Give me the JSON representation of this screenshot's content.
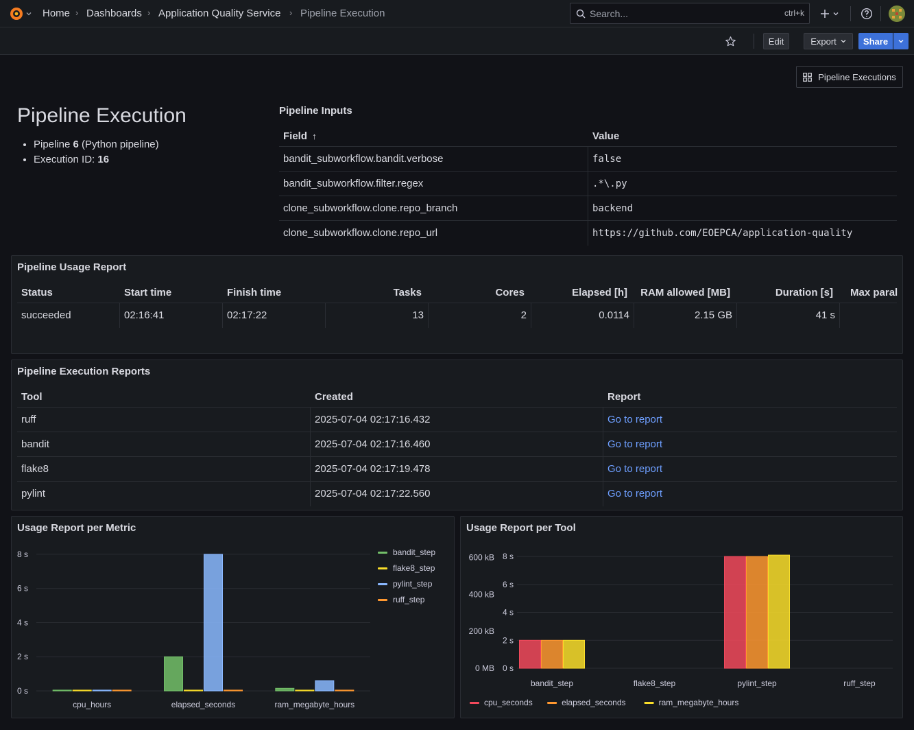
{
  "nav": {
    "breadcrumbs": [
      "Home",
      "Dashboards",
      "Application Quality Service",
      "Pipeline Execution"
    ],
    "search_placeholder": "Search...",
    "search_shortcut": "ctrl+k"
  },
  "toolbar": {
    "edit": "Edit",
    "export": "Export",
    "share": "Share",
    "pipeline_executions": "Pipeline Executions"
  },
  "header": {
    "title": "Pipeline Execution",
    "pipeline_label": "Pipeline ",
    "pipeline_id": "6",
    "pipeline_name": " (Python pipeline)",
    "execution_label": "Execution ID: ",
    "execution_id": "16"
  },
  "inputs": {
    "title": "Pipeline Inputs",
    "columns": [
      "Field",
      "Value"
    ],
    "sort_indicator": "↑",
    "rows": [
      {
        "field": "bandit_subworkflow.bandit.verbose",
        "value": "false"
      },
      {
        "field": "bandit_subworkflow.filter.regex",
        "value": ".*\\.py"
      },
      {
        "field": "clone_subworkflow.clone.repo_branch",
        "value": "backend"
      },
      {
        "field": "clone_subworkflow.clone.repo_url",
        "value": "https://github.com/EOEPCA/application-quality"
      }
    ]
  },
  "usage": {
    "title": "Pipeline Usage Report",
    "columns": [
      "Status",
      "Start time",
      "Finish time",
      "Tasks",
      "Cores",
      "Elapsed [h]",
      "RAM allowed [MB]",
      "Duration [s]",
      "Max paral"
    ],
    "row": [
      "succeeded",
      "02:16:41",
      "02:17:22",
      "13",
      "2",
      "0.0114",
      "2.15 GB",
      "41 s",
      ""
    ]
  },
  "reports": {
    "title": "Pipeline Execution Reports",
    "columns": [
      "Tool",
      "Created",
      "Report"
    ],
    "rows": [
      {
        "tool": "ruff",
        "created": "2025-07-04 02:17:16.432",
        "report": "Go to report"
      },
      {
        "tool": "bandit",
        "created": "2025-07-04 02:17:16.460",
        "report": "Go to report"
      },
      {
        "tool": "flake8",
        "created": "2025-07-04 02:17:19.478",
        "report": "Go to report"
      },
      {
        "tool": "pylint",
        "created": "2025-07-04 02:17:22.560",
        "report": "Go to report"
      }
    ]
  },
  "chart_data": [
    {
      "type": "bar",
      "title": "Usage Report per Metric",
      "categories": [
        "cpu_hours",
        "elapsed_seconds",
        "ram_megabyte_hours"
      ],
      "series": [
        {
          "name": "bandit_step",
          "color": "#73bf69",
          "values": [
            0.01,
            2.0,
            0.15
          ]
        },
        {
          "name": "flake8_step",
          "color": "#fade2a",
          "values": [
            0,
            0,
            0
          ]
        },
        {
          "name": "pylint_step",
          "color": "#8ab8ff",
          "values": [
            0.03,
            8.0,
            0.6
          ]
        },
        {
          "name": "ruff_step",
          "color": "#ff9830",
          "values": [
            0,
            0.03,
            0
          ]
        }
      ],
      "y_ticks": [
        "0 s",
        "2 s",
        "4 s",
        "6 s",
        "8 s"
      ],
      "ylim": [
        0,
        8.6
      ],
      "legend": "right"
    },
    {
      "type": "bar",
      "title": "Usage Report per Tool",
      "categories": [
        "bandit_step",
        "flake8_step",
        "pylint_step",
        "ruff_step"
      ],
      "series": [
        {
          "name": "cpu_seconds",
          "color": "#f2495c",
          "values": [
            2.0,
            0,
            8.0,
            0
          ]
        },
        {
          "name": "elapsed_seconds",
          "color": "#ff9830",
          "values": [
            2.0,
            0,
            8.0,
            0
          ]
        },
        {
          "name": "ram_megabyte_hours",
          "color": "#fade2a",
          "values": [
            2.0,
            0,
            8.1,
            0
          ]
        }
      ],
      "y_ticks_left": [
        "0 MB",
        "200 kB",
        "400 kB",
        "600 kB"
      ],
      "y_ticks_right": [
        "0 s",
        "2 s",
        "4 s",
        "6 s",
        "8 s"
      ],
      "ylim": [
        0,
        8.3
      ],
      "legend": "bottom"
    }
  ]
}
